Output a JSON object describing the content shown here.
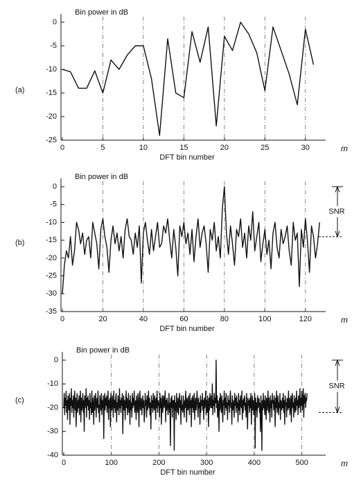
{
  "chart_data": [
    {
      "type": "line",
      "panel_label": "(a)",
      "title": "Bin power in dB",
      "xlabel": "DFT bin number",
      "x_symbol": "m",
      "color": "#111111",
      "grid": "x",
      "xlim": [
        0,
        32.5
      ],
      "ylim": [
        -25,
        0
      ],
      "xticks": [
        0,
        5,
        10,
        15,
        20,
        25,
        30
      ],
      "yticks": [
        0,
        -5,
        -10,
        -15,
        -20,
        -25
      ],
      "values": [
        -10,
        -10.5,
        -14,
        -14,
        -10.3,
        -15,
        -8,
        -10,
        -7,
        -5,
        -5,
        -12,
        -24,
        -3.5,
        -15,
        -16,
        -2,
        -8.5,
        -1,
        -22,
        -3,
        -6,
        0,
        -2.5,
        -6.5,
        -14.5,
        -1,
        -6,
        -11,
        -17.5,
        -1.5,
        -9
      ]
    },
    {
      "type": "line",
      "panel_label": "(b)",
      "title": "Bin power in dB",
      "xlabel": "DFT bin number",
      "x_symbol": "m",
      "color": "#111111",
      "grid": "x",
      "xlim": [
        0,
        130
      ],
      "ylim": [
        -35,
        0
      ],
      "xticks": [
        0,
        20,
        40,
        60,
        80,
        100,
        120
      ],
      "yticks": [
        0,
        -5,
        -10,
        -15,
        -20,
        -25,
        -30,
        -35
      ],
      "snr": {
        "label": "SNR",
        "range": [
          0,
          -14
        ]
      },
      "values": [
        -30,
        -22,
        -18,
        -20,
        -14,
        -22,
        -18,
        -10,
        -12,
        -16,
        -13,
        -19,
        -15,
        -14,
        -20,
        -10,
        -13,
        -16,
        -23,
        -12,
        -9,
        -14,
        -17,
        -24,
        -15,
        -11,
        -16,
        -13,
        -18,
        -14,
        -20,
        -12,
        -9,
        -14,
        -15,
        -19,
        -13,
        -17,
        -11,
        -27,
        -13,
        -10,
        -15,
        -19,
        -12,
        -18,
        -14,
        -10,
        -17,
        -16,
        -11,
        -13,
        -9,
        -15,
        -20,
        -12,
        -17,
        -25,
        -11,
        -14,
        -10,
        -16,
        -13,
        -19,
        -12,
        -21,
        -14,
        -9,
        -17,
        -13,
        -11,
        -16,
        -24,
        -12,
        -15,
        -10,
        -18,
        -14,
        -20,
        -6,
        0,
        -13,
        -19,
        -11,
        -16,
        -22,
        -12,
        -14,
        -9,
        -17,
        -13,
        -20,
        -11,
        -15,
        -7,
        -18,
        -14,
        -10,
        -21,
        -16,
        -12,
        -19,
        -15,
        -23,
        -13,
        -10,
        -17,
        -20,
        -12,
        -16,
        -14,
        -11,
        -18,
        -22,
        -10,
        -15,
        -13,
        -28,
        -12,
        -17,
        -9,
        -15,
        -24,
        -11,
        -14,
        -20,
        -16,
        -10
      ]
    },
    {
      "type": "line",
      "panel_label": "(c)",
      "title": "Bin power in dB",
      "xlabel": "DFT bin number",
      "x_symbol": "m",
      "color": "#111111",
      "grid": "x",
      "xlim": [
        0,
        550
      ],
      "ylim": [
        -40,
        0
      ],
      "xticks": [
        0,
        100,
        200,
        300,
        400,
        500
      ],
      "yticks": [
        0,
        -10,
        -20,
        -30,
        -40
      ],
      "snr": {
        "label": "SNR",
        "range": [
          0,
          -22
        ]
      },
      "values": [
        -20,
        -14,
        -23,
        -16,
        -19,
        -13,
        -22,
        -17,
        -25,
        -15,
        -18,
        -21,
        -14,
        -27,
        -16,
        -19,
        -12,
        -22,
        -17,
        -20,
        -15,
        -24,
        -18,
        -13,
        -21,
        -16,
        -28,
        -19,
        -14,
        -22,
        -17,
        -20,
        -15,
        -23,
        -18,
        -13,
        -26,
        -16,
        -21,
        -19,
        -14,
        -22,
        -17,
        -30,
        -15,
        -20,
        -18,
        -12,
        -24,
        -16,
        -19,
        -15,
        -21,
        -17,
        -25,
        -14,
        -20,
        -18,
        -23,
        -13,
        -22,
        -16,
        -19,
        -27,
        -15,
        -21,
        -17,
        -14,
        -24,
        -18,
        -16,
        -20,
        -13,
        -22,
        -19,
        -26,
        -15,
        -18,
        -21,
        -14,
        -23,
        -17,
        -20,
        -15,
        -33,
        -18,
        -14,
        -21,
        -16,
        -19,
        -15,
        -22,
        -18,
        -13,
        -25,
        -17,
        -20,
        -16,
        -28,
        -14,
        -19,
        -21,
        -15,
        -18,
        -24,
        -13,
        -20,
        -17,
        -22,
        -16,
        -14,
        -26,
        -18,
        -21,
        -15,
        -19,
        -23,
        -12,
        -20,
        -17,
        -22,
        -16,
        -19,
        -14,
        -31,
        -18,
        -15,
        -21,
        -17,
        -25,
        -18,
        -13,
        -20,
        -16,
        -23,
        -19,
        -14,
        -22,
        -17,
        -27,
        -15,
        -21,
        -18,
        -24,
        -14,
        -20,
        -16,
        -19,
        -13,
        -22,
        -20,
        -17,
        -25,
        -15,
        -19,
        -22,
        -14,
        -18,
        -28,
        -16,
        -13,
        -21,
        -18,
        -16,
        -23,
        -19,
        -15,
        -20,
        -17,
        -26,
        -22,
        -14,
        -19,
        -17,
        -24,
        -15,
        -21,
        -18,
        -13,
        -20,
        -16,
        -23,
        -18,
        -29,
        -15,
        -20,
        -17,
        -22,
        -14,
        -19,
        -21,
        -15,
        -18,
        -25,
        -16,
        -20,
        -13,
        -22,
        -17,
        -19,
        -18,
        -24,
        -14,
        -20,
        -16,
        -27,
        -19,
        -15,
        -22,
        -17,
        -15,
        -20,
        -18,
        -13,
        -26,
        -17,
        -21,
        -16,
        -19,
        -23,
        -19,
        -14,
        -22,
        -18,
        -36,
        -16,
        -20,
        -15,
        -24,
        -17,
        -20,
        -17,
        -38,
        -15,
        -21,
        -18,
        -25,
        -14,
        -19,
        -22,
        -16,
        -23,
        -18,
        -14,
        -20,
        -17,
        -27,
        -15,
        -21,
        -19,
        -22,
        -15,
        -19,
        -24,
        -17,
        -20,
        -13,
        -18,
        -26,
        -16,
        -18,
        -21,
        -15,
        -19,
        -23,
        -14,
        -20,
        -17,
        -28,
        -16,
        -20,
        -15,
        -22,
        -18,
        -14,
        -25,
        -19,
        -16,
        -21,
        -17,
        -13,
        -19,
        -24,
        -16,
        -20,
        -18,
        -27,
        -15,
        -22,
        -17,
        -19,
        -14,
        -21,
        -17,
        -25,
        -16,
        -20,
        -18,
        -13,
        -23,
        -17,
        -22,
        -15,
        -19,
        -28,
        -16,
        -21,
        -14,
        -18,
        -20,
        -15,
        -20,
        -10,
        -23,
        -17,
        -19,
        -14,
        -22,
        -16,
        -18,
        0,
        -20,
        -15,
        -24,
        -17,
        -19,
        -30,
        -16,
        -21,
        -14,
        -18,
        -22,
        -15,
        -20,
        -26,
        -17,
        -19,
        -13,
        -23,
        -16,
        -20,
        -14,
        -21,
        -18,
        -25,
        -15,
        -19,
        -17,
        -22,
        -16,
        -13,
        -20,
        -18,
        -27,
        -15,
        -21,
        -17,
        -19,
        -24,
        -14,
        -19,
        -16,
        -22,
        -15,
        -20,
        -18,
        -26,
        -14,
        -21,
        -17,
        -23,
        -15,
        -18,
        -20,
        -13,
        -25,
        -17,
        -22,
        -16,
        -19,
        -15,
        -21,
        -18,
        -24,
        -14,
        -20,
        -29,
        -16,
        -19,
        -17,
        -22,
        -16,
        -20,
        -14,
        -27,
        -18,
        -15,
        -21,
        -17,
        -23,
        -19,
        -14,
        -37,
        -16,
        -21,
        -18,
        -24,
        -15,
        -20,
        -17,
        -16,
        -22,
        -18,
        -30,
        -15,
        -20,
        -38,
        -17,
        -21,
        -14,
        -20,
        -17,
        -23,
        -15,
        -19,
        -25,
        -16,
        -21,
        -18,
        -13,
        -22,
        -16,
        -19,
        -26,
        -15,
        -20,
        -17,
        -24,
        -14,
        -18,
        -17,
        -21,
        -15,
        -19,
        -28,
        -16,
        -20,
        -13,
        -22,
        -18,
        -15,
        -23,
        -18,
        -20,
        -14,
        -25,
        -17,
        -19,
        -21,
        -16,
        -20,
        -14,
        -22,
        -17,
        -27,
        -15,
        -19,
        -18,
        -24,
        -16,
        -18,
        -21,
        -13,
        -20,
        -16,
        -23,
        -19,
        -15,
        -26,
        -17,
        -14,
        -20,
        -18,
        -24,
        -15,
        -19,
        -22,
        -16,
        -21,
        -13,
        -19,
        -17,
        -23,
        -15,
        -20,
        -18,
        -12,
        -22,
        -16,
        -19,
        -13,
        -21,
        -17,
        -12,
        -24,
        -15,
        -18,
        -14,
        -20,
        -16,
        -17,
        -14
      ]
    }
  ]
}
